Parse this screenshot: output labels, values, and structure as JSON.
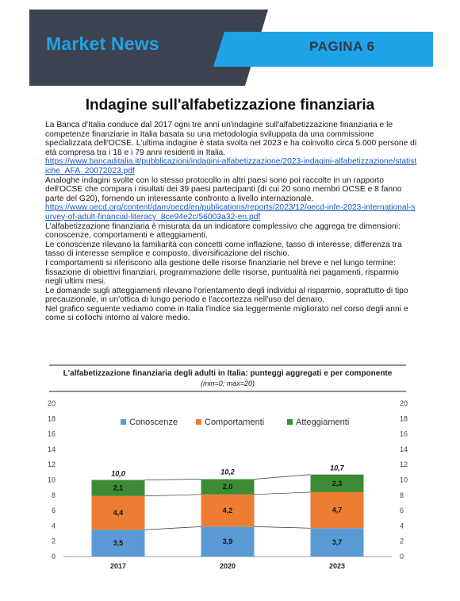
{
  "header": {
    "brand": "Market News",
    "page": "PAGINA 6"
  },
  "article": {
    "title": "Indagine sull'alfabetizzazione finanziaria",
    "p1": "La Banca d'Italia conduce dal 2017 ogni tre anni un'indagine sull'alfabetizzazione finanziaria e le competenze finanziarie in Italia basata su una metodologia sviluppata da una commissione specializzata dell'OCSE. L'ultima indagine è stata svolta nel 2023 e ha coinvolto circa 5.000 persone di età compresa tra i 18 e i 79 anni residenti in Italia.",
    "link1": "https://www.bancaditalia.it/pubblicazioni/indagini-alfabetizzazione/2023-indagini-alfabetizzazione/statistiche_AFA_20072023.pdf",
    "p2": "Analoghe indagini svolte con lo stesso protocollo in altri paesi sono poi raccolte in un rapporto dell'OCSE che compara i risultati dei 39 paesi partecipanti (di cui 20 sono membri OCSE e 8 fanno parte del G20), fornendo un interessante confronto a livello internazionale.",
    "link2": "https://www.oecd.org/content/dam/oecd/en/publications/reports/2023/12/oecd-infe-2023-international-survey-of-adult-financial-literacy_8ce94e2c/56003a32-en.pdf",
    "p3": "L'alfabetizzazione finanziaria è misurata da un indicatore complessivo che aggrega tre dimensioni: conoscenze, comportamenti e atteggiamenti.",
    "p4": "Le conoscenze rilevano la familiarità con concetti come inflazione, tasso di interesse, differenza tra tasso di interesse semplice e composto, diversificazione del rischio.",
    "p5": "I comportamenti si riferiscono alla gestione delle risorse finanziarie nel breve e nel lungo termine: fissazione di obiettivi finanziari, programmazione delle risorse, puntualità nei pagamenti, risparmio negli ultimi mesi.",
    "p6": "Le domande sugli atteggiamenti rilevano l'orientamento degli individui al risparmio, soprattutto di tipo precauzionale, in un'ottica di lungo periodo e l'accortezza nell'uso del denaro.",
    "p7": "Nel grafico seguente vediamo come in Italia l'indice sia leggermente migliorato nel corso degli anni e come si collochi intorno al valore medio."
  },
  "chart_data": {
    "type": "bar",
    "stacked": true,
    "title": "L'alfabetizzazione finanziaria degli adulti in Italia: punteggi aggregati e per componente",
    "subtitle": "(min=0; max=20)",
    "categories": [
      "2017",
      "2020",
      "2023"
    ],
    "series": [
      {
        "name": "Conoscenze",
        "values": [
          3.5,
          3.9,
          3.7
        ],
        "labels": [
          "3,5",
          "3,9",
          "3,7"
        ],
        "color": "#5b9bd5"
      },
      {
        "name": "Comportamenti",
        "values": [
          4.4,
          4.2,
          4.7
        ],
        "labels": [
          "4,4",
          "4,2",
          "4,7"
        ],
        "color": "#ed7d31"
      },
      {
        "name": "Atteggiamenti",
        "values": [
          2.1,
          2.0,
          2.3
        ],
        "labels": [
          "2,1",
          "2,0",
          "2,3"
        ],
        "color": "#3d8b37"
      }
    ],
    "totals": [
      10.0,
      10.2,
      10.7
    ],
    "total_labels": [
      "10,0",
      "10,2",
      "10,7"
    ],
    "ylim": [
      0,
      20
    ],
    "yticks": [
      "0",
      "2",
      "4",
      "6",
      "8",
      "10",
      "12",
      "14",
      "16",
      "18",
      "20"
    ],
    "legend_position": "top",
    "grid": false
  },
  "colors": {
    "header_dark": "#3b4351",
    "header_blue": "#1fa2e6",
    "link": "#1a57c7"
  }
}
